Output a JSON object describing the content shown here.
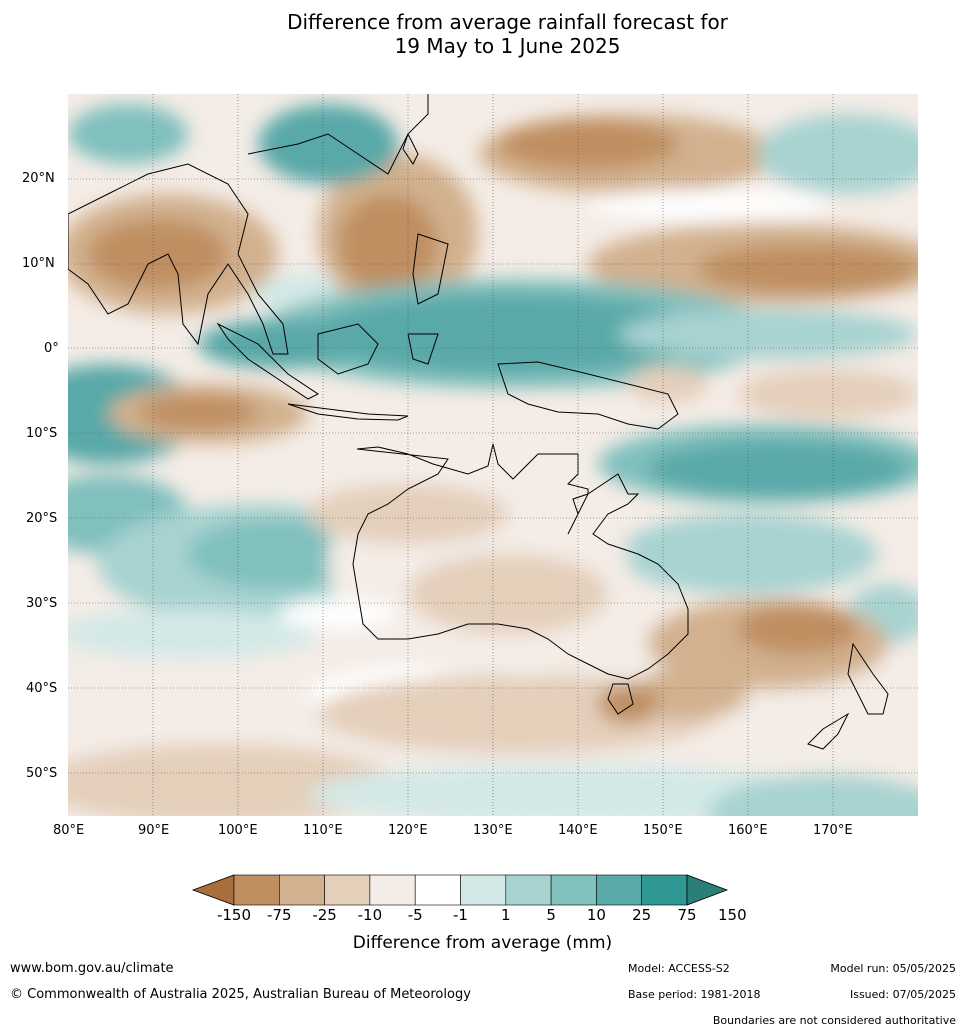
{
  "title": {
    "line1": "Difference from average rainfall forecast for",
    "line2": "19 May to 1 June 2025"
  },
  "map": {
    "lon_labels": [
      "80°E",
      "90°E",
      "100°E",
      "110°E",
      "120°E",
      "130°E",
      "140°E",
      "150°E",
      "160°E",
      "170°E"
    ],
    "lat_labels": [
      "20°N",
      "10°N",
      "0°",
      "10°S",
      "20°S",
      "30°S",
      "40°S",
      "50°S"
    ],
    "extent": {
      "lon": [
        80,
        180
      ],
      "lat": [
        -55,
        30
      ]
    }
  },
  "colorbar": {
    "ticks": [
      "-150",
      "-75",
      "-25",
      "-10",
      "-5",
      "-1",
      "1",
      "5",
      "10",
      "25",
      "75",
      "150"
    ],
    "colors": [
      "#a86f3c",
      "#bf8f62",
      "#d2b18e",
      "#e4cfbb",
      "#f4ece6",
      "#ffffff",
      "#d3e9e7",
      "#a7d3d1",
      "#80c0bd",
      "#58a9a8",
      "#2f9892",
      "#2a7f78"
    ],
    "label": "Difference from average (mm)"
  },
  "footer": {
    "website": "www.bom.gov.au/climate",
    "copyright": "© Commonwealth of Australia 2025, Australian Bureau of Meteorology",
    "model": "Model: ACCESS-S2",
    "base_period": "Base period: 1981-2018",
    "model_run": "Model run: 05/05/2025",
    "issued": "Issued: 07/05/2025",
    "disclaimer": "Boundaries are not considered authoritative"
  }
}
